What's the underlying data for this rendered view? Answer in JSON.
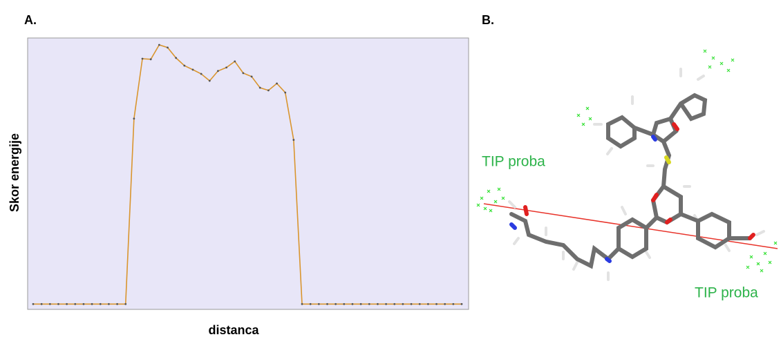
{
  "panel_labels": [
    "A.",
    "B."
  ],
  "chart_data": {
    "type": "line",
    "xlabel": "distanca",
    "ylabel": "Skor energije",
    "color": "#d9952e",
    "ylim": [
      -2,
      100
    ],
    "values": [
      0,
      0,
      0,
      0,
      0,
      0,
      0,
      0,
      0,
      0,
      0,
      0,
      69.7,
      92.2,
      92.0,
      97.4,
      96.4,
      92.5,
      89.6,
      88.1,
      86.5,
      83.9,
      87.6,
      88.9,
      91.2,
      86.8,
      85.5,
      81.3,
      80.3,
      82.9,
      79.5,
      61.7,
      0,
      0,
      0,
      0,
      0,
      0,
      0,
      0,
      0,
      0,
      0,
      0,
      0,
      0,
      0,
      0,
      0,
      0,
      0,
      0
    ]
  },
  "molecule": {
    "probe_labels": [
      "TIP proba",
      "TIP proba"
    ]
  }
}
